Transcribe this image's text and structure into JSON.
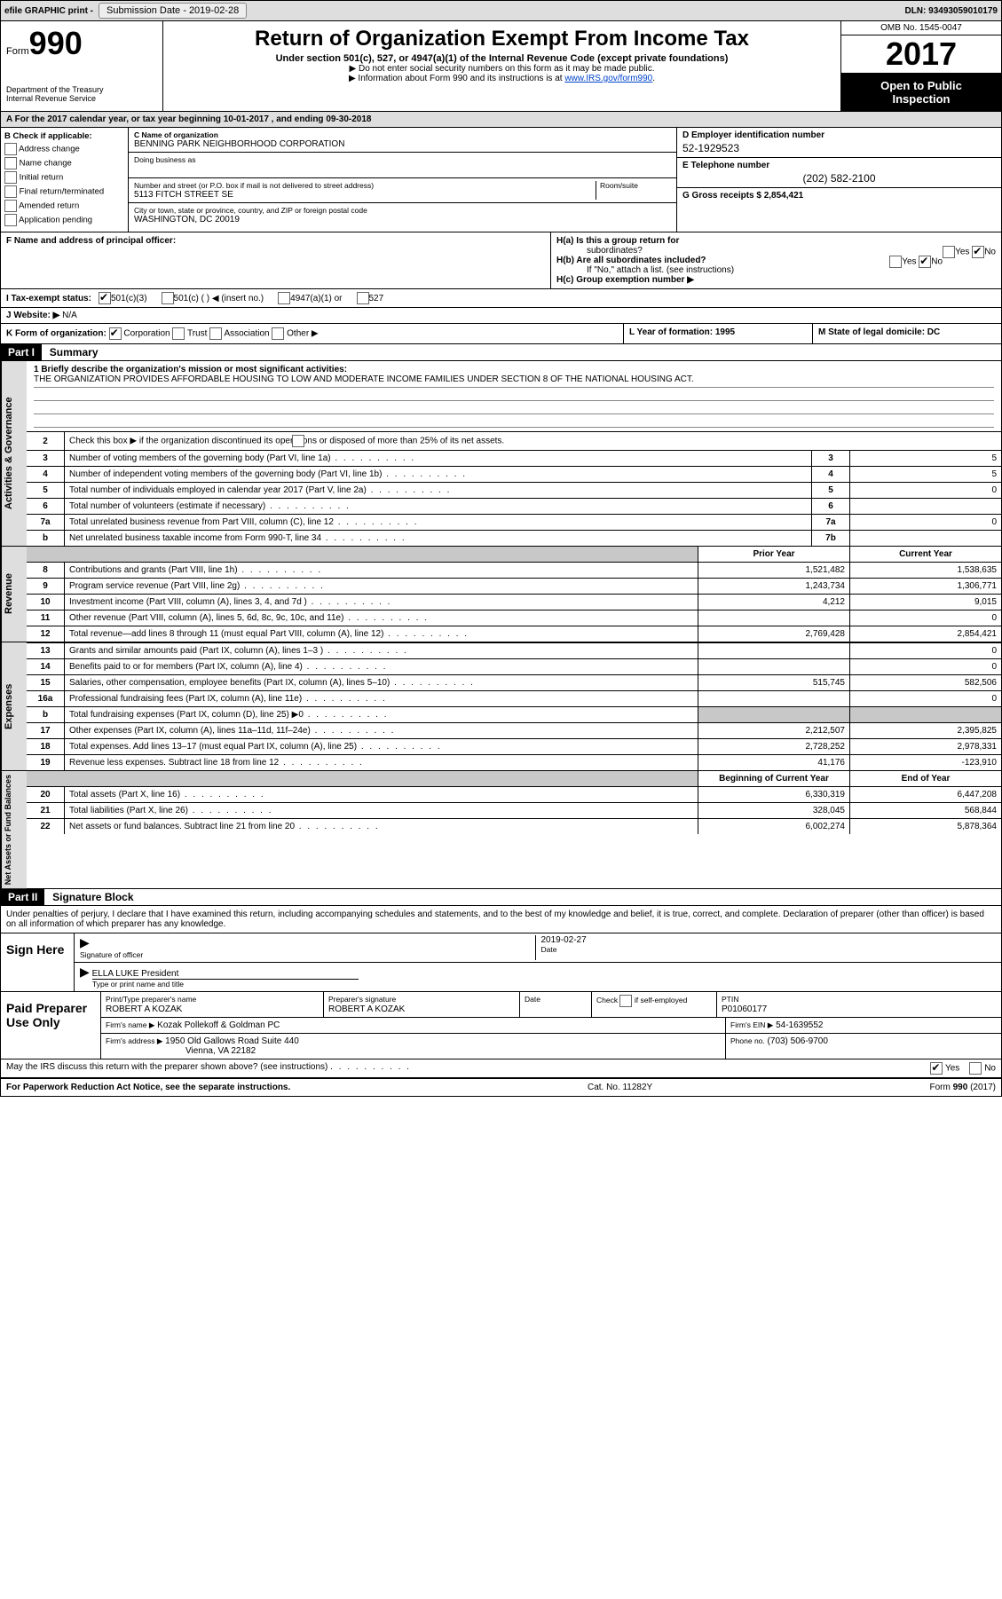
{
  "topbar": {
    "efile": "efile GRAPHIC print -",
    "submission_label": "Submission Date - 2019-02-28",
    "dln": "DLN: 93493059010179"
  },
  "header": {
    "form_word": "Form",
    "form_number": "990",
    "dept": "Department of the Treasury",
    "irs": "Internal Revenue Service",
    "title": "Return of Organization Exempt From Income Tax",
    "sub": "Under section 501(c), 527, or 4947(a)(1) of the Internal Revenue Code (except private foundations)",
    "note1": "▶ Do not enter social security numbers on this form as it may be made public.",
    "note2_a": "▶ Information about Form 990 and its instructions is at ",
    "note2_link": "www.IRS.gov/form990",
    "omb": "OMB No. 1545-0047",
    "year": "2017",
    "open1": "Open to Public",
    "open2": "Inspection"
  },
  "rowA": "A  For the 2017 calendar year, or tax year beginning 10-01-2017    , and ending 09-30-2018",
  "colB": {
    "header": "B Check if applicable:",
    "items": [
      "Address change",
      "Name change",
      "Initial return",
      "Final return/terminated",
      "Amended return",
      "Application pending"
    ]
  },
  "colC": {
    "name_label": "C Name of organization",
    "name": "BENNING PARK NEIGHBORHOOD CORPORATION",
    "dba_label": "Doing business as",
    "street_label": "Number and street (or P.O. box if mail is not delivered to street address)",
    "room_label": "Room/suite",
    "street": "5113 FITCH STREET SE",
    "city_label": "City or town, state or province, country, and ZIP or foreign postal code",
    "city": "WASHINGTON, DC  20019"
  },
  "colD": {
    "ein_label": "D Employer identification number",
    "ein": "52-1929523",
    "phone_label": "E Telephone number",
    "phone": "(202) 582-2100",
    "gross_label": "G Gross receipts $ 2,854,421"
  },
  "rowF": {
    "label": "F  Name and address of principal officer:"
  },
  "rowH": {
    "ha": "H(a)  Is this a group return for",
    "ha2": "subordinates?",
    "hb": "H(b)  Are all subordinates included?",
    "hb_note": "If \"No,\" attach a list. (see instructions)",
    "hc": "H(c)  Group exemption number ▶",
    "yes": "Yes",
    "no": "No"
  },
  "rowI": {
    "label": "I  Tax-exempt status:",
    "o1": "501(c)(3)",
    "o2": "501(c) (  ) ◀ (insert no.)",
    "o3": "4947(a)(1) or",
    "o4": "527"
  },
  "rowJ": {
    "label": "J  Website: ▶",
    "val": "N/A"
  },
  "rowK": {
    "label": "K Form of organization:",
    "o1": "Corporation",
    "o2": "Trust",
    "o3": "Association",
    "o4": "Other ▶"
  },
  "rowL": {
    "label": "L Year of formation: 1995"
  },
  "rowM": {
    "label": "M State of legal domicile: DC"
  },
  "part1": {
    "part": "Part I",
    "title": "Summary",
    "l1_label": "1  Briefly describe the organization's mission or most significant activities:",
    "l1_text": "THE ORGANIZATION PROVIDES AFFORDABLE HOUSING TO LOW AND MODERATE INCOME FAMILIES UNDER SECTION 8 OF THE NATIONAL HOUSING ACT.",
    "l2": "Check this box ▶         if the organization discontinued its operations or disposed of more than 25% of its net assets.",
    "side_activities": "Activities & Governance",
    "side_revenue": "Revenue",
    "side_expenses": "Expenses",
    "side_net": "Net Assets or Fund Balances"
  },
  "gov_rows": [
    {
      "n": "3",
      "label": "Number of voting members of the governing body (Part VI, line 1a)",
      "box": "3",
      "val": "5"
    },
    {
      "n": "4",
      "label": "Number of independent voting members of the governing body (Part VI, line 1b)",
      "box": "4",
      "val": "5"
    },
    {
      "n": "5",
      "label": "Total number of individuals employed in calendar year 2017 (Part V, line 2a)",
      "box": "5",
      "val": "0"
    },
    {
      "n": "6",
      "label": "Total number of volunteers (estimate if necessary)",
      "box": "6",
      "val": ""
    },
    {
      "n": "7a",
      "label": "Total unrelated business revenue from Part VIII, column (C), line 12",
      "box": "7a",
      "val": "0"
    },
    {
      "n": "b",
      "label": "Net unrelated business taxable income from Form 990-T, line 34",
      "box": "7b",
      "val": ""
    }
  ],
  "twocol_header": {
    "prior": "Prior Year",
    "current": "Current Year"
  },
  "revenue_rows": [
    {
      "n": "8",
      "label": "Contributions and grants (Part VIII, line 1h)",
      "p": "1,521,482",
      "c": "1,538,635"
    },
    {
      "n": "9",
      "label": "Program service revenue (Part VIII, line 2g)",
      "p": "1,243,734",
      "c": "1,306,771"
    },
    {
      "n": "10",
      "label": "Investment income (Part VIII, column (A), lines 3, 4, and 7d )",
      "p": "4,212",
      "c": "9,015"
    },
    {
      "n": "11",
      "label": "Other revenue (Part VIII, column (A), lines 5, 6d, 8c, 9c, 10c, and 11e)",
      "p": "",
      "c": "0"
    },
    {
      "n": "12",
      "label": "Total revenue—add lines 8 through 11 (must equal Part VIII, column (A), line 12)",
      "p": "2,769,428",
      "c": "2,854,421"
    }
  ],
  "expense_rows": [
    {
      "n": "13",
      "label": "Grants and similar amounts paid (Part IX, column (A), lines 1–3 )",
      "p": "",
      "c": "0"
    },
    {
      "n": "14",
      "label": "Benefits paid to or for members (Part IX, column (A), line 4)",
      "p": "",
      "c": "0"
    },
    {
      "n": "15",
      "label": "Salaries, other compensation, employee benefits (Part IX, column (A), lines 5–10)",
      "p": "515,745",
      "c": "582,506"
    },
    {
      "n": "16a",
      "label": "Professional fundraising fees (Part IX, column (A), line 11e)",
      "p": "",
      "c": "0"
    },
    {
      "n": "b",
      "label": "Total fundraising expenses (Part IX, column (D), line 25) ▶0",
      "p": "SHADE",
      "c": "SHADE"
    },
    {
      "n": "17",
      "label": "Other expenses (Part IX, column (A), lines 11a–11d, 11f–24e)",
      "p": "2,212,507",
      "c": "2,395,825"
    },
    {
      "n": "18",
      "label": "Total expenses. Add lines 13–17 (must equal Part IX, column (A), line 25)",
      "p": "2,728,252",
      "c": "2,978,331"
    },
    {
      "n": "19",
      "label": "Revenue less expenses. Subtract line 18 from line 12",
      "p": "41,176",
      "c": "-123,910"
    }
  ],
  "net_header": {
    "begin": "Beginning of Current Year",
    "end": "End of Year"
  },
  "net_rows": [
    {
      "n": "20",
      "label": "Total assets (Part X, line 16)",
      "p": "6,330,319",
      "c": "6,447,208"
    },
    {
      "n": "21",
      "label": "Total liabilities (Part X, line 26)",
      "p": "328,045",
      "c": "568,844"
    },
    {
      "n": "22",
      "label": "Net assets or fund balances. Subtract line 21 from line 20",
      "p": "6,002,274",
      "c": "5,878,364"
    }
  ],
  "part2": {
    "part": "Part II",
    "title": "Signature Block",
    "decl": "Under penalties of perjury, I declare that I have examined this return, including accompanying schedules and statements, and to the best of my knowledge and belief, it is true, correct, and complete. Declaration of preparer (other than officer) is based on all information of which preparer has any knowledge."
  },
  "sign": {
    "here": "Sign Here",
    "sig_officer": "Signature of officer",
    "date_lbl": "Date",
    "date_val": "2019-02-27",
    "name": "ELLA LUKE President",
    "name_lbl": "Type or print name and title"
  },
  "preparer": {
    "left": "Paid Preparer Use Only",
    "print_lbl": "Print/Type preparer's name",
    "print_val": "ROBERT A KOZAK",
    "sig_lbl": "Preparer's signature",
    "sig_val": "ROBERT A KOZAK",
    "date_lbl": "Date",
    "check_lbl": "Check         if self-employed",
    "ptin_lbl": "PTIN",
    "ptin_val": "P01060177",
    "firm_name_lbl": "Firm's name      ▶",
    "firm_name": "Kozak Pollekoff & Goldman PC",
    "firm_ein_lbl": "Firm's EIN ▶",
    "firm_ein": "54-1639552",
    "firm_addr_lbl": "Firm's address ▶",
    "firm_addr1": "1950 Old Gallows Road Suite 440",
    "firm_addr2": "Vienna, VA  22182",
    "phone_lbl": "Phone no.",
    "phone": "(703) 506-9700"
  },
  "discuss": {
    "q": "May the IRS discuss this return with the preparer shown above? (see instructions)",
    "yes": "Yes",
    "no": "No"
  },
  "footer": {
    "left": "For Paperwork Reduction Act Notice, see the separate instructions.",
    "mid": "Cat. No. 11282Y",
    "right_a": "Form ",
    "right_b": "990",
    "right_c": " (2017)"
  },
  "l2n": "2"
}
